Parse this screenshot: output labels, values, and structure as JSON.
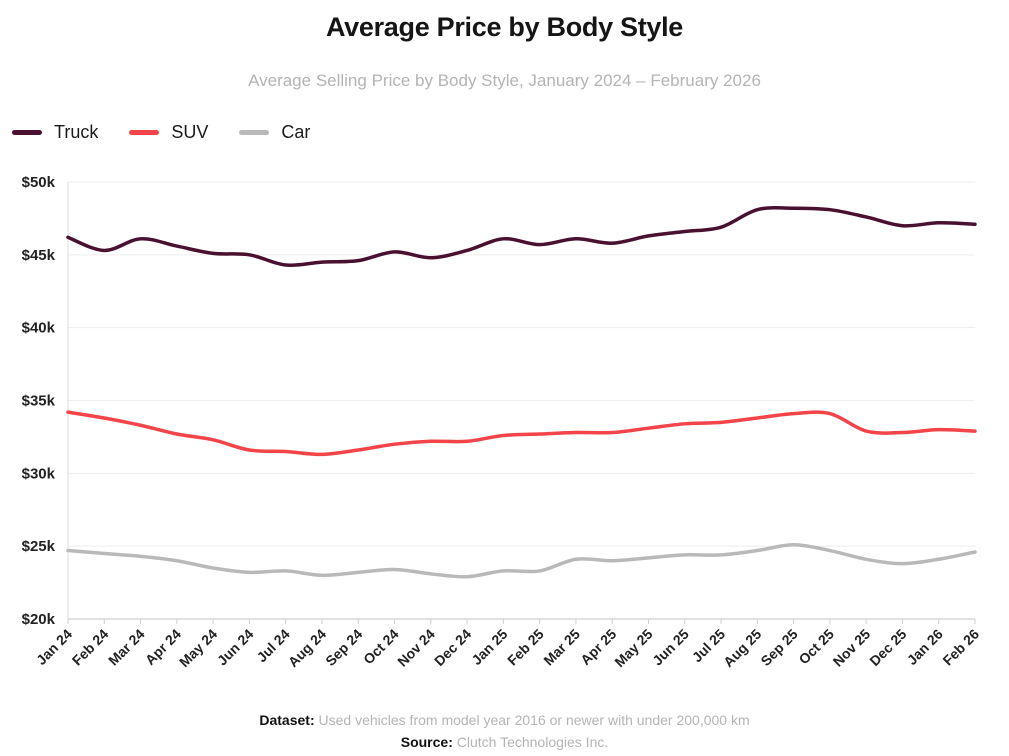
{
  "chart_data": {
    "type": "line",
    "title": "Average Price by Body Style",
    "subtitle": "Average Selling Price by Body Style, January 2024 – February 2026",
    "xlabel": "",
    "ylabel": "",
    "ylim": [
      20000,
      50000
    ],
    "yticks": [
      "$20k",
      "$25k",
      "$30k",
      "$35k",
      "$40k",
      "$45k",
      "$50k"
    ],
    "legend_position": "top-left",
    "grid": true,
    "categories": [
      "Jan 24",
      "Feb 24",
      "Mar 24",
      "Apr 24",
      "May 24",
      "Jun 24",
      "Jul 24",
      "Aug 24",
      "Sep 24",
      "Oct 24",
      "Nov 24",
      "Dec 24",
      "Jan 25",
      "Feb 25",
      "Mar 25",
      "Apr 25",
      "May 25",
      "Jun 25",
      "Jul 25",
      "Aug 25",
      "Sep 25",
      "Oct 25",
      "Nov 25",
      "Dec 25",
      "Jan 26",
      "Feb 26"
    ],
    "series": [
      {
        "name": "Truck",
        "color": "#4a1030",
        "values": [
          46200,
          45300,
          46100,
          45600,
          45100,
          45000,
          44300,
          44500,
          44600,
          45200,
          44800,
          45300,
          46100,
          45700,
          46100,
          45800,
          46300,
          46600,
          46900,
          48100,
          48200,
          48100,
          47600,
          47000,
          47200,
          47100
        ]
      },
      {
        "name": "SUV",
        "color": "#f24449",
        "values": [
          34200,
          33800,
          33300,
          32700,
          32300,
          31600,
          31500,
          31300,
          31600,
          32000,
          32200,
          32200,
          32600,
          32700,
          32800,
          32800,
          33100,
          33400,
          33500,
          33800,
          34100,
          34100,
          32900,
          32800,
          33000,
          32900
        ]
      },
      {
        "name": "Car",
        "color": "#b9b9b9",
        "values": [
          24700,
          24500,
          24300,
          24000,
          23500,
          23200,
          23300,
          23000,
          23200,
          23400,
          23100,
          22900,
          23300,
          23300,
          24100,
          24000,
          24200,
          24400,
          24400,
          24700,
          25100,
          24700,
          24100,
          23800,
          24100,
          24600
        ]
      }
    ]
  },
  "footer": {
    "dataset_label": "Dataset:",
    "dataset_text": "Used vehicles from model year 2016 or newer with under 200,000 km",
    "source_label": "Source:",
    "source_text": "Clutch Technologies Inc."
  }
}
